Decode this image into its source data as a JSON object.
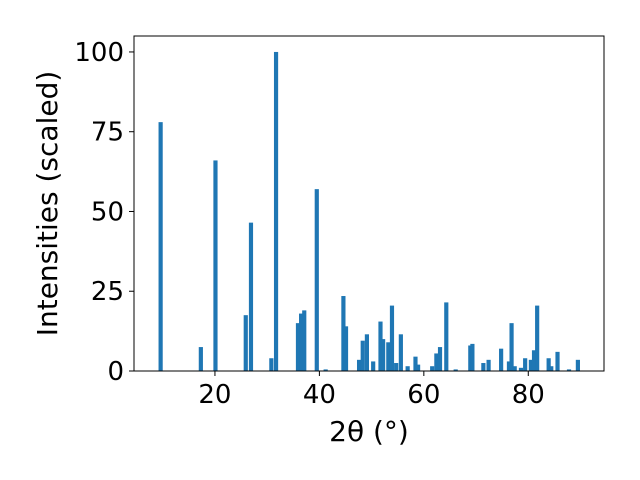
{
  "chart_data": {
    "type": "bar",
    "title": "",
    "xlabel": "2θ (°)",
    "ylabel": "Intensities (scaled)",
    "xlim": [
      4.5,
      94.5
    ],
    "ylim": [
      0,
      105
    ],
    "xticks": [
      20,
      40,
      60,
      80
    ],
    "yticks": [
      0,
      25,
      50,
      75,
      100
    ],
    "grid": false,
    "bar_color": "#1f77b4",
    "bar_width_deg": 0.8,
    "x": [
      9.6,
      17.3,
      20.1,
      25.9,
      26.9,
      30.8,
      31.7,
      35.9,
      36.5,
      37.1,
      39.5,
      41.2,
      44.6,
      45.1,
      47.6,
      48.3,
      49.1,
      50.3,
      51.7,
      52.2,
      53.2,
      53.9,
      54.7,
      55.6,
      56.9,
      58.4,
      58.9,
      61.6,
      62.4,
      63.1,
      64.3,
      66.1,
      68.9,
      69.3,
      71.4,
      72.4,
      74.8,
      76.3,
      76.8,
      77.4,
      78.6,
      79.4,
      80.5,
      81.1,
      81.7,
      83.9,
      84.4,
      85.6,
      87.8,
      89.5
    ],
    "values": [
      78,
      7.5,
      66,
      17.5,
      46.5,
      4,
      100,
      15,
      18,
      19,
      57,
      0.5,
      23.5,
      14,
      3.5,
      9.5,
      11.5,
      3,
      15.5,
      10,
      9,
      20.5,
      2.5,
      11.5,
      1.5,
      4.5,
      2,
      1.5,
      5.5,
      7.5,
      21.5,
      0.5,
      8,
      8.5,
      2.5,
      3.5,
      7,
      3,
      15,
      1.5,
      1,
      4,
      3.5,
      6.5,
      20.5,
      4,
      1.5,
      6,
      0.5,
      3.5
    ]
  }
}
